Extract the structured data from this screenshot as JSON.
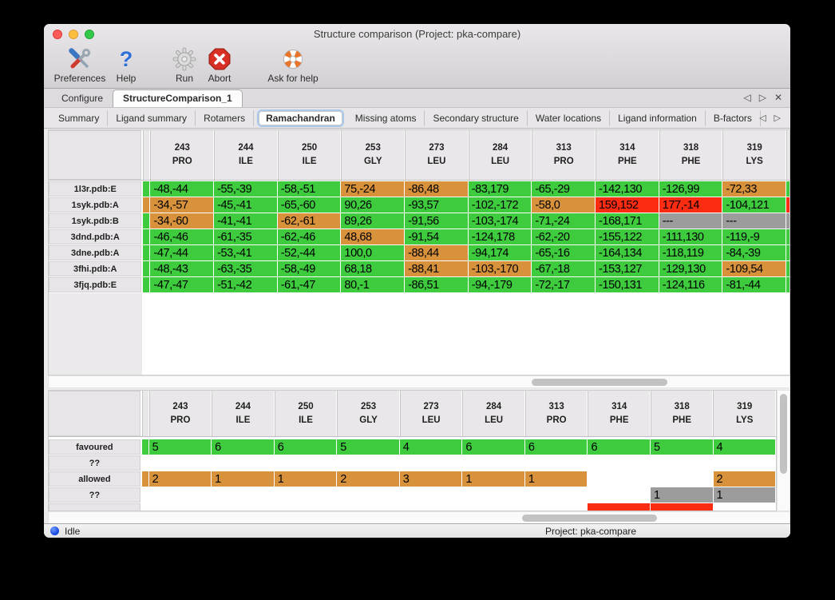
{
  "window_title": "Structure comparison (Project: pka-compare)",
  "toolbar": {
    "items": [
      {
        "label": "Preferences",
        "icon": "tools-icon"
      },
      {
        "label": "Help",
        "icon": "help-icon"
      },
      {
        "label": "Run",
        "icon": "gear-icon"
      },
      {
        "label": "Abort",
        "icon": "abort-icon"
      },
      {
        "label": "Ask for help",
        "icon": "lifebuoy-icon"
      }
    ]
  },
  "tabs": {
    "items": [
      {
        "label": "Configure",
        "selected": false
      },
      {
        "label": "StructureComparison_1",
        "selected": true
      }
    ],
    "controls": {
      "prev": "◁",
      "next": "▷",
      "close": "✕"
    }
  },
  "subtabs": {
    "items": [
      {
        "label": "Summary"
      },
      {
        "label": "Ligand summary"
      },
      {
        "label": "Rotamers"
      },
      {
        "label": "Ramachandran"
      },
      {
        "label": "Missing atoms"
      },
      {
        "label": "Secondary structure"
      },
      {
        "label": "Water locations"
      },
      {
        "label": "Ligand information"
      },
      {
        "label": "B-factors"
      }
    ],
    "selected": "Ramachandran",
    "controls": {
      "prev": "◁",
      "next": "▷"
    }
  },
  "legend_colors": {
    "favoured_green": "#3ecb3e",
    "allowed_orange": "#d8923c",
    "outlier_red": "#fb2c12",
    "missing_gray": "#9c9c9c"
  },
  "columns": [
    {
      "num": "243",
      "res": "PRO"
    },
    {
      "num": "244",
      "res": "ILE"
    },
    {
      "num": "250",
      "res": "ILE"
    },
    {
      "num": "253",
      "res": "GLY"
    },
    {
      "num": "273",
      "res": "LEU"
    },
    {
      "num": "284",
      "res": "LEU"
    },
    {
      "num": "313",
      "res": "PRO"
    },
    {
      "num": "314",
      "res": "PHE"
    },
    {
      "num": "318",
      "res": "PHE"
    },
    {
      "num": "319",
      "res": "LYS"
    }
  ],
  "phi_psi_table": {
    "rows": [
      {
        "label": "1l3r.pdb:E",
        "sliver": "f",
        "rsliver": "f",
        "cells": [
          [
            "-48,-44",
            "f"
          ],
          [
            "-55,-39",
            "f"
          ],
          [
            "-58,-51",
            "f"
          ],
          [
            "75,-24",
            "a"
          ],
          [
            "-86,48",
            "a"
          ],
          [
            "-83,179",
            "f"
          ],
          [
            "-65,-29",
            "f"
          ],
          [
            "-142,130",
            "f"
          ],
          [
            "-126,99",
            "f"
          ],
          [
            "-72,33",
            "a"
          ]
        ]
      },
      {
        "label": "1syk.pdb:A",
        "sliver": "a",
        "rsliver": "o",
        "cells": [
          [
            "-34,-57",
            "a"
          ],
          [
            "-45,-41",
            "f"
          ],
          [
            "-65,-60",
            "f"
          ],
          [
            "90,26",
            "f"
          ],
          [
            "-93,57",
            "f"
          ],
          [
            "-102,-172",
            "f"
          ],
          [
            "-58,0",
            "a"
          ],
          [
            "159,152",
            "o"
          ],
          [
            "177,-14",
            "o"
          ],
          [
            "-104,121",
            "f"
          ]
        ]
      },
      {
        "label": "1syk.pdb:B",
        "sliver": "f",
        "rsliver": "m",
        "cells": [
          [
            "-34,-60",
            "a"
          ],
          [
            "-41,-41",
            "f"
          ],
          [
            "-62,-61",
            "a"
          ],
          [
            "89,26",
            "f"
          ],
          [
            "-91,56",
            "f"
          ],
          [
            "-103,-174",
            "f"
          ],
          [
            "-71,-24",
            "f"
          ],
          [
            "-168,171",
            "f"
          ],
          [
            "---",
            "m"
          ],
          [
            "---",
            "m"
          ]
        ]
      },
      {
        "label": "3dnd.pdb:A",
        "sliver": "f",
        "rsliver": "f",
        "cells": [
          [
            "-46,-46",
            "f"
          ],
          [
            "-61,-35",
            "f"
          ],
          [
            "-62,-46",
            "f"
          ],
          [
            "48,68",
            "a"
          ],
          [
            "-91,54",
            "f"
          ],
          [
            "-124,178",
            "f"
          ],
          [
            "-62,-20",
            "f"
          ],
          [
            "-155,122",
            "f"
          ],
          [
            "-111,130",
            "f"
          ],
          [
            "-119,-9",
            "f"
          ]
        ]
      },
      {
        "label": "3dne.pdb:A",
        "sliver": "f",
        "rsliver": "f",
        "cells": [
          [
            "-47,-44",
            "f"
          ],
          [
            "-53,-41",
            "f"
          ],
          [
            "-52,-44",
            "f"
          ],
          [
            "100,0",
            "f"
          ],
          [
            "-88,44",
            "a"
          ],
          [
            "-94,174",
            "f"
          ],
          [
            "-65,-16",
            "f"
          ],
          [
            "-164,134",
            "f"
          ],
          [
            "-118,119",
            "f"
          ],
          [
            "-84,-39",
            "f"
          ]
        ]
      },
      {
        "label": "3fhi.pdb:A",
        "sliver": "f",
        "rsliver": "f",
        "cells": [
          [
            "-48,-43",
            "f"
          ],
          [
            "-63,-35",
            "f"
          ],
          [
            "-58,-49",
            "f"
          ],
          [
            "68,18",
            "f"
          ],
          [
            "-88,41",
            "a"
          ],
          [
            "-103,-170",
            "a"
          ],
          [
            "-67,-18",
            "f"
          ],
          [
            "-153,127",
            "f"
          ],
          [
            "-129,130",
            "f"
          ],
          [
            "-109,54",
            "a"
          ]
        ]
      },
      {
        "label": "3fjq.pdb:E",
        "sliver": "f",
        "rsliver": "f",
        "cells": [
          [
            "-47,-47",
            "f"
          ],
          [
            "-51,-42",
            "f"
          ],
          [
            "-61,-47",
            "f"
          ],
          [
            "80,-1",
            "f"
          ],
          [
            "-86,51",
            "f"
          ],
          [
            "-94,-179",
            "f"
          ],
          [
            "-72,-17",
            "f"
          ],
          [
            "-150,131",
            "f"
          ],
          [
            "-124,116",
            "f"
          ],
          [
            "-81,-44",
            "f"
          ]
        ]
      }
    ]
  },
  "summary_table": {
    "rows": [
      {
        "label": "favoured",
        "sliver": "f",
        "partial": false,
        "cells": [
          [
            "5",
            "f"
          ],
          [
            "6",
            "f"
          ],
          [
            "6",
            "f"
          ],
          [
            "5",
            "f"
          ],
          [
            "4",
            "f"
          ],
          [
            "6",
            "f"
          ],
          [
            "6",
            "f"
          ],
          [
            "6",
            "f"
          ],
          [
            "5",
            "f"
          ],
          [
            "4",
            "f"
          ]
        ]
      },
      {
        "label": "??",
        "sliver": "w",
        "partial": false,
        "cells": [
          [
            "",
            "w"
          ],
          [
            "",
            "w"
          ],
          [
            "",
            "w"
          ],
          [
            "",
            "w"
          ],
          [
            "",
            "w"
          ],
          [
            "",
            "w"
          ],
          [
            "",
            "w"
          ],
          [
            "",
            "w"
          ],
          [
            "",
            "w"
          ],
          [
            "",
            "w"
          ]
        ]
      },
      {
        "label": "allowed",
        "sliver": "a",
        "partial": false,
        "cells": [
          [
            "2",
            "a"
          ],
          [
            "1",
            "a"
          ],
          [
            "1",
            "a"
          ],
          [
            "2",
            "a"
          ],
          [
            "3",
            "a"
          ],
          [
            "1",
            "a"
          ],
          [
            "1",
            "a"
          ],
          [
            "",
            "w"
          ],
          [
            "",
            "w"
          ],
          [
            "2",
            "a"
          ]
        ]
      },
      {
        "label": "??",
        "sliver": "w",
        "partial": false,
        "cells": [
          [
            "",
            "w"
          ],
          [
            "",
            "w"
          ],
          [
            "",
            "w"
          ],
          [
            "",
            "w"
          ],
          [
            "",
            "w"
          ],
          [
            "",
            "w"
          ],
          [
            "",
            "w"
          ],
          [
            "",
            "w"
          ],
          [
            "1",
            "m"
          ],
          [
            "1",
            "m"
          ]
        ]
      },
      {
        "label": "",
        "sliver": "w",
        "partial": true,
        "cells": [
          [
            "",
            "w"
          ],
          [
            "",
            "w"
          ],
          [
            "",
            "w"
          ],
          [
            "",
            "w"
          ],
          [
            "",
            "w"
          ],
          [
            "",
            "w"
          ],
          [
            "",
            "w"
          ],
          [
            "",
            "o"
          ],
          [
            "",
            "o"
          ],
          [
            "",
            "w"
          ]
        ]
      }
    ]
  },
  "statusbar": {
    "state": "Idle",
    "project": "Project: pka-compare"
  }
}
